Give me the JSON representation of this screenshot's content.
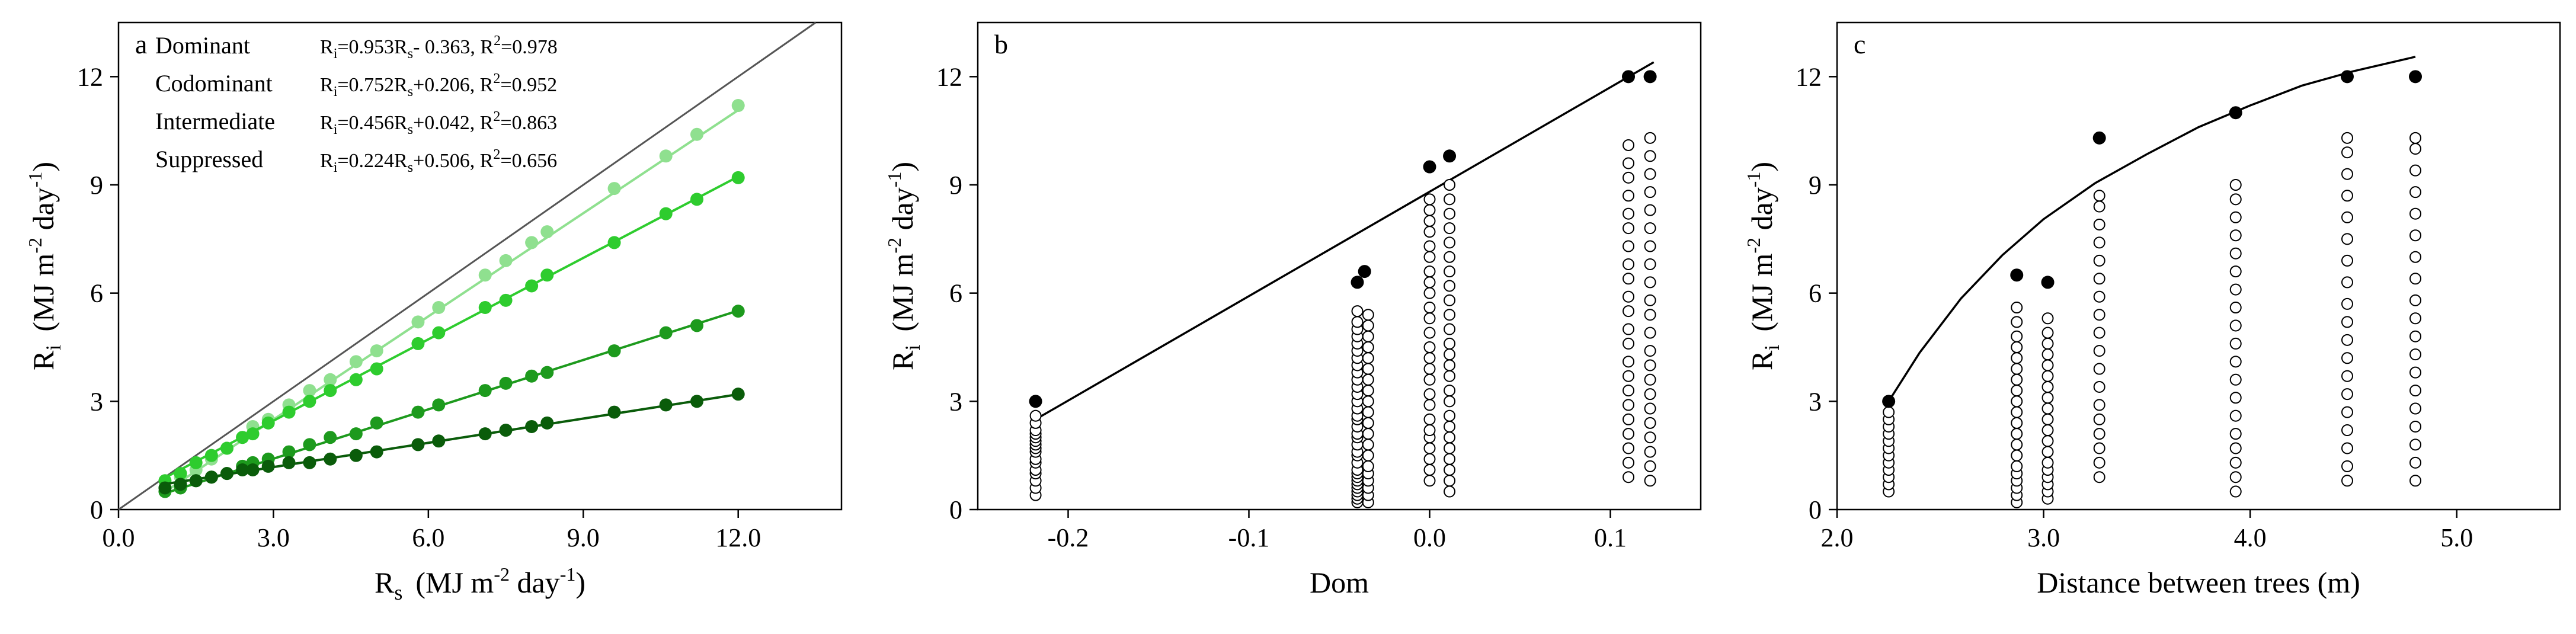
{
  "colors": {
    "dominant": "#8fe08f",
    "codominant": "#2ecc2e",
    "intermediate": "#1d9a1d",
    "suppressed": "#0a5c0a",
    "identity_line": "#555555",
    "black": "#000000"
  },
  "chart_data": [
    {
      "type": "scatter",
      "panel": "a",
      "xlabel": "R_s (MJ m^-2 day^-1)",
      "ylabel": "R_i (MJ m^-2 day^-1)",
      "xlabel_text": {
        "main": "R",
        "sub": "s",
        "units": "(MJ m",
        "exp1": "-2",
        "mid": " day",
        "exp2": "-1",
        "end": ")"
      },
      "ylabel_text": {
        "main": "R",
        "sub": "i",
        "units": "(MJ m",
        "exp1": "-2",
        "mid": " day",
        "exp2": "-1",
        "end": ")"
      },
      "xlim": [
        0,
        14
      ],
      "ylim": [
        0,
        13.5
      ],
      "xticks": [
        "0.0",
        "3.0",
        "6.0",
        "9.0",
        "12.0"
      ],
      "yticks": [
        "0",
        "3",
        "6",
        "9",
        "12"
      ],
      "xtick_values": [
        0,
        3,
        6,
        9,
        12
      ],
      "ytick_values": [
        0,
        3,
        6,
        9,
        12
      ],
      "identity_line": true,
      "x": [
        0.9,
        1.2,
        1.5,
        1.8,
        2.1,
        2.4,
        2.6,
        2.9,
        3.3,
        3.7,
        4.1,
        4.6,
        5.0,
        5.8,
        6.2,
        7.1,
        7.5,
        8.0,
        8.3,
        9.6,
        10.6,
        11.2,
        12.0
      ],
      "series": [
        {
          "name": "Dominant",
          "equation": {
            "lhs": "R",
            "lhs_sub": "i",
            "rhs": "=0.953R",
            "rhs_sub": "s",
            "rest": "- 0.363,  R",
            "exp": "2",
            "tail": "=0.978"
          },
          "slope": 0.953,
          "intercept": -0.363,
          "color_key": "dominant",
          "values": [
            0.6,
            0.9,
            1.1,
            1.4,
            1.7,
            2.0,
            2.3,
            2.5,
            2.9,
            3.3,
            3.6,
            4.1,
            4.4,
            5.2,
            5.6,
            6.5,
            6.9,
            7.4,
            7.7,
            8.9,
            9.8,
            10.4,
            11.2
          ]
        },
        {
          "name": "Codominant",
          "equation": {
            "lhs": "R",
            "lhs_sub": "i",
            "rhs": "=0.752R",
            "rhs_sub": "s",
            "rest": "+0.206,  R",
            "exp": "2",
            "tail": "=0.952"
          },
          "slope": 0.752,
          "intercept": 0.206,
          "color_key": "codominant",
          "values": [
            0.8,
            1.0,
            1.3,
            1.5,
            1.7,
            2.0,
            2.1,
            2.4,
            2.7,
            3.0,
            3.3,
            3.6,
            3.9,
            4.6,
            4.9,
            5.6,
            5.8,
            6.2,
            6.5,
            7.4,
            8.2,
            8.6,
            9.2
          ]
        },
        {
          "name": "Intermediate",
          "equation": {
            "lhs": "R",
            "lhs_sub": "i",
            "rhs": "=0.456R",
            "rhs_sub": "s",
            "rest": "+0.042,  R",
            "exp": "2",
            "tail": "=0.863"
          },
          "slope": 0.456,
          "intercept": 0.042,
          "color_key": "intermediate",
          "values": [
            0.5,
            0.6,
            0.8,
            0.9,
            1.0,
            1.2,
            1.3,
            1.4,
            1.6,
            1.8,
            2.0,
            2.1,
            2.4,
            2.7,
            2.9,
            3.3,
            3.5,
            3.7,
            3.8,
            4.4,
            4.9,
            5.1,
            5.5
          ]
        },
        {
          "name": "Suppressed",
          "equation": {
            "lhs": "R",
            "lhs_sub": "i",
            "rhs": "=0.224R",
            "rhs_sub": "s",
            "rest": "+0.506,  R",
            "exp": "2",
            "tail": "=0.656"
          },
          "slope": 0.224,
          "intercept": 0.506,
          "color_key": "suppressed",
          "values": [
            0.6,
            0.7,
            0.8,
            0.9,
            1.0,
            1.1,
            1.1,
            1.2,
            1.3,
            1.3,
            1.4,
            1.5,
            1.6,
            1.8,
            1.9,
            2.1,
            2.2,
            2.3,
            2.4,
            2.7,
            2.9,
            3.0,
            3.2
          ]
        }
      ]
    },
    {
      "type": "scatter",
      "panel": "b",
      "xlabel": "Dom",
      "ylabel": "R_i (MJ m^-2 day^-1)",
      "ylabel_text": {
        "main": "R",
        "sub": "i",
        "units": "(MJ m",
        "exp1": "-2",
        "mid": " day",
        "exp2": "-1",
        "end": ")"
      },
      "xlim": [
        -0.25,
        0.15
      ],
      "ylim": [
        0,
        13.5
      ],
      "xticks": [
        "-0.2",
        "-0.1",
        "0.0",
        "0.1"
      ],
      "xtick_values": [
        -0.2,
        -0.1,
        0.0,
        0.1
      ],
      "yticks": [
        "0",
        "3",
        "6",
        "9",
        "12"
      ],
      "ytick_values": [
        0,
        3,
        6,
        9,
        12
      ],
      "fit_line": {
        "x": [
          -0.218,
          0.124
        ],
        "y": [
          2.5,
          12.4
        ]
      },
      "filled_points": [
        {
          "x": -0.218,
          "y": 3.0
        },
        {
          "x": -0.04,
          "y": 6.3
        },
        {
          "x": -0.036,
          "y": 6.6
        },
        {
          "x": 0.0,
          "y": 9.5
        },
        {
          "x": 0.011,
          "y": 9.8
        },
        {
          "x": 0.11,
          "y": 12.0
        },
        {
          "x": 0.122,
          "y": 12.0
        }
      ],
      "open_columns": [
        {
          "x": -0.218,
          "values": [
            0.4,
            0.6,
            0.8,
            1.0,
            1.1,
            1.3,
            1.4,
            1.6,
            1.7,
            1.8,
            1.9,
            2.0,
            2.1,
            2.2,
            2.4,
            2.6
          ]
        },
        {
          "x": -0.04,
          "values": [
            0.2,
            0.3,
            0.4,
            0.5,
            0.6,
            0.7,
            0.8,
            0.9,
            1.0,
            1.1,
            1.3,
            1.5,
            1.6,
            1.8,
            2.0,
            2.1,
            2.3,
            2.5,
            2.6,
            2.8,
            3.0,
            3.2,
            3.4,
            3.6,
            3.8,
            4.0,
            4.2,
            4.4,
            4.6,
            4.8,
            5.0,
            5.2,
            5.5
          ]
        },
        {
          "x": -0.034,
          "values": [
            0.2,
            0.4,
            0.6,
            0.8,
            1.0,
            1.2,
            1.5,
            1.8,
            2.1,
            2.4,
            2.7,
            3.0,
            3.3,
            3.6,
            3.9,
            4.2,
            4.5,
            4.8,
            5.1,
            5.4
          ]
        },
        {
          "x": 0.0,
          "values": [
            0.8,
            1.1,
            1.4,
            1.7,
            2.0,
            2.2,
            2.5,
            2.9,
            3.2,
            3.6,
            3.9,
            4.2,
            4.5,
            4.9,
            5.3,
            5.6,
            6.0,
            6.3,
            6.6,
            7.0,
            7.3,
            7.7,
            8.0,
            8.3,
            8.6
          ]
        },
        {
          "x": 0.011,
          "values": [
            0.5,
            0.8,
            1.1,
            1.4,
            1.7,
            2.0,
            2.3,
            2.6,
            3.0,
            3.3,
            3.7,
            4.0,
            4.3,
            4.6,
            5.0,
            5.4,
            5.8,
            6.2,
            6.6,
            7.0,
            7.4,
            7.8,
            8.2,
            8.6,
            9.0
          ]
        },
        {
          "x": 0.11,
          "values": [
            0.9,
            1.3,
            1.7,
            2.1,
            2.5,
            2.9,
            3.3,
            3.7,
            4.1,
            4.6,
            5.0,
            5.5,
            5.9,
            6.4,
            6.8,
            7.3,
            7.8,
            8.2,
            8.7,
            9.2,
            9.6,
            10.1
          ]
        },
        {
          "x": 0.122,
          "values": [
            0.8,
            1.2,
            1.6,
            2.0,
            2.4,
            2.8,
            3.2,
            3.6,
            4.0,
            4.4,
            4.9,
            5.4,
            5.8,
            6.3,
            6.8,
            7.3,
            7.8,
            8.3,
            8.8,
            9.3,
            9.8,
            10.3
          ]
        }
      ]
    },
    {
      "type": "scatter",
      "panel": "c",
      "xlabel": "Distance between trees (m)",
      "ylabel": "R_i (MJ m^-2 day^-1)",
      "ylabel_text": {
        "main": "R",
        "sub": "i",
        "units": "(MJ m",
        "exp1": "-2",
        "mid": " day",
        "exp2": "-1",
        "end": ")"
      },
      "xlim": [
        2.0,
        5.5
      ],
      "ylim": [
        0,
        13.5
      ],
      "xticks": [
        "2.0",
        "3.0",
        "4.0",
        "5.0"
      ],
      "xtick_values": [
        2.0,
        3.0,
        4.0,
        5.0
      ],
      "yticks": [
        "0",
        "3",
        "6",
        "9",
        "12"
      ],
      "ytick_values": [
        0,
        3,
        6,
        9,
        12
      ],
      "fit_curve": {
        "x": [
          2.25,
          2.4,
          2.6,
          2.8,
          3.0,
          3.25,
          3.5,
          3.75,
          4.0,
          4.25,
          4.5,
          4.8
        ],
        "y": [
          3.0,
          4.35,
          5.85,
          7.05,
          8.05,
          9.05,
          9.85,
          10.6,
          11.2,
          11.75,
          12.15,
          12.55
        ]
      },
      "filled_points": [
        {
          "x": 2.25,
          "y": 3.0
        },
        {
          "x": 2.87,
          "y": 6.5
        },
        {
          "x": 3.02,
          "y": 6.3
        },
        {
          "x": 3.27,
          "y": 10.3
        },
        {
          "x": 3.93,
          "y": 11.0
        },
        {
          "x": 4.47,
          "y": 12.0
        },
        {
          "x": 4.8,
          "y": 12.0
        }
      ],
      "open_columns": [
        {
          "x": 2.25,
          "values": [
            0.5,
            0.7,
            0.9,
            1.1,
            1.3,
            1.5,
            1.7,
            1.9,
            2.1,
            2.3,
            2.5,
            2.7
          ]
        },
        {
          "x": 2.87,
          "values": [
            0.2,
            0.4,
            0.6,
            0.8,
            1.0,
            1.2,
            1.5,
            1.8,
            2.1,
            2.4,
            2.7,
            3.0,
            3.3,
            3.6,
            3.9,
            4.2,
            4.5,
            4.8,
            5.2,
            5.6
          ]
        },
        {
          "x": 3.02,
          "values": [
            0.3,
            0.5,
            0.7,
            0.9,
            1.1,
            1.3,
            1.6,
            1.9,
            2.2,
            2.5,
            2.8,
            3.1,
            3.4,
            3.7,
            4.0,
            4.3,
            4.6,
            4.9,
            5.3
          ]
        },
        {
          "x": 3.27,
          "values": [
            0.9,
            1.3,
            1.7,
            2.1,
            2.5,
            2.9,
            3.4,
            3.9,
            4.4,
            4.9,
            5.4,
            5.9,
            6.4,
            6.9,
            7.4,
            7.9,
            8.4,
            8.7
          ]
        },
        {
          "x": 3.93,
          "values": [
            0.5,
            0.9,
            1.3,
            1.7,
            2.1,
            2.6,
            3.1,
            3.6,
            4.1,
            4.6,
            5.1,
            5.6,
            6.1,
            6.6,
            7.1,
            7.6,
            8.1,
            8.6,
            9.0
          ]
        },
        {
          "x": 4.47,
          "values": [
            0.8,
            1.2,
            1.7,
            2.2,
            2.7,
            3.2,
            3.7,
            4.2,
            4.7,
            5.2,
            5.7,
            6.3,
            6.9,
            7.5,
            8.1,
            8.7,
            9.3,
            9.9,
            10.3
          ]
        },
        {
          "x": 4.8,
          "values": [
            0.8,
            1.3,
            1.8,
            2.3,
            2.8,
            3.3,
            3.8,
            4.3,
            4.8,
            5.3,
            5.8,
            6.4,
            7.0,
            7.6,
            8.2,
            8.8,
            9.4,
            10.0,
            10.3
          ]
        }
      ]
    }
  ]
}
